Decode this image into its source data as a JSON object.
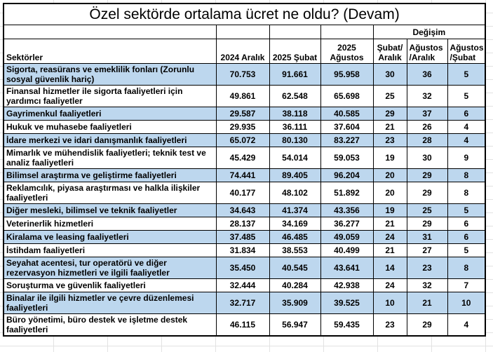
{
  "title": "Özel sektörde ortalama ücret ne oldu? (Devam)",
  "colors": {
    "shaded_row": "#BDD7EE",
    "plain_row": "#FFFFFF",
    "border": "#000000",
    "text": "#000000"
  },
  "table": {
    "change_group_label": "Değişim",
    "columns": {
      "sector": "Sektörler",
      "p1": "2024 Aralık",
      "p2": "2025 Şubat",
      "p3": "2025 Ağustos",
      "c1": "Şubat/\nAralık",
      "c2": "Ağustos\n/Aralık",
      "c3": "Ağustos\n/Şubat"
    },
    "rows": [
      {
        "sector": "Sigorta, reasürans ve emeklilik fonları (Zorunlu sosyal güvenlik hariç)",
        "values": [
          "70.753",
          "91.661",
          "95.958",
          "30",
          "36",
          "5"
        ]
      },
      {
        "sector": "Finansal hizmetler ile sigorta faaliyetleri için yardımcı faaliyetler",
        "values": [
          "49.861",
          "62.548",
          "65.698",
          "25",
          "32",
          "5"
        ]
      },
      {
        "sector": "Gayrimenkul faaliyetleri",
        "values": [
          "29.587",
          "38.118",
          "40.585",
          "29",
          "37",
          "6"
        ]
      },
      {
        "sector": "Hukuk ve muhasebe faaliyetleri",
        "values": [
          "29.935",
          "36.111",
          "37.604",
          "21",
          "26",
          "4"
        ]
      },
      {
        "sector": "İdare merkezi ve idari danışmanlık faaliyetleri",
        "values": [
          "65.072",
          "80.130",
          "83.227",
          "23",
          "28",
          "4"
        ]
      },
      {
        "sector": "Mimarlık ve mühendislik faaliyetleri; teknik test ve analiz faaliyetleri",
        "values": [
          "45.429",
          "54.014",
          "59.053",
          "19",
          "30",
          "9"
        ]
      },
      {
        "sector": "Bilimsel araştırma ve geliştirme faaliyetleri",
        "values": [
          "74.441",
          "89.405",
          "96.204",
          "20",
          "29",
          "8"
        ]
      },
      {
        "sector": "Reklamcılık, piyasa araştırması ve halkla ilişkiler faaliyetleri",
        "values": [
          "40.177",
          "48.102",
          "51.892",
          "20",
          "29",
          "8"
        ]
      },
      {
        "sector": "Diğer mesleki, bilimsel ve teknik faaliyetler",
        "values": [
          "34.643",
          "41.374",
          "43.356",
          "19",
          "25",
          "5"
        ]
      },
      {
        "sector": "Veterinerlik hizmetleri",
        "values": [
          "28.137",
          "34.169",
          "36.277",
          "21",
          "29",
          "6"
        ]
      },
      {
        "sector": "Kiralama ve leasing faaliyetleri",
        "values": [
          "37.485",
          "46.485",
          "49.059",
          "24",
          "31",
          "6"
        ]
      },
      {
        "sector": "İstihdam faaliyetleri",
        "values": [
          "31.834",
          "38.553",
          "40.499",
          "21",
          "27",
          "5"
        ]
      },
      {
        "sector": "Seyahat acentesi, tur operatörü ve diğer rezervasyon hizmetleri ve ilgili faaliyetler",
        "values": [
          "35.450",
          "40.545",
          "43.641",
          "14",
          "23",
          "8"
        ]
      },
      {
        "sector": "Soruşturma ve güvenlik faaliyetleri",
        "values": [
          "32.444",
          "40.284",
          "42.938",
          "24",
          "32",
          "7"
        ]
      },
      {
        "sector": "Binalar ile ilgili hizmetler ve çevre düzenlemesi faaliyetleri",
        "values": [
          "32.717",
          "35.909",
          "39.525",
          "10",
          "21",
          "10"
        ]
      },
      {
        "sector": "Büro yönetimi, büro destek ve işletme destek faaliyetleri",
        "values": [
          "46.115",
          "56.947",
          "59.435",
          "23",
          "29",
          "4"
        ]
      }
    ]
  }
}
